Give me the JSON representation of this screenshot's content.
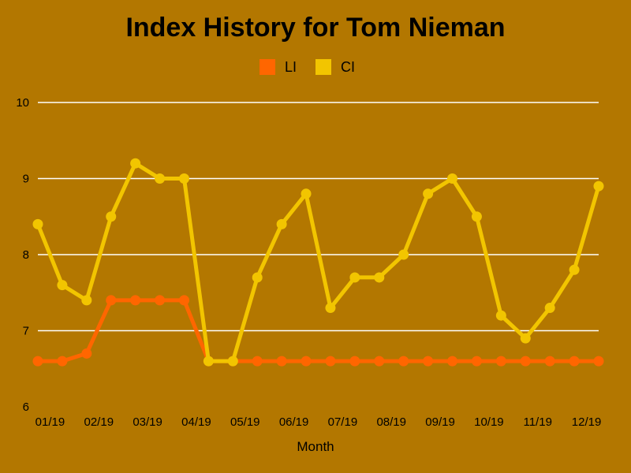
{
  "chart_data": {
    "type": "line",
    "title": "Index History for Tom Nieman",
    "xlabel": "Month",
    "ylabel": "",
    "ylim": [
      6,
      10
    ],
    "yticks": [
      "6",
      "7",
      "8",
      "9",
      "10"
    ],
    "grid": true,
    "legend_position": "top-center",
    "x": [
      "01/19",
      "",
      "",
      "02/19",
      "",
      "03/19",
      "",
      "04/19",
      "",
      "05/19",
      "",
      "06/19",
      "",
      "07/19",
      "",
      "08/19",
      "",
      "09/19",
      "",
      "10/19",
      "",
      "11/19",
      "",
      "12/19"
    ],
    "xtick_labels": [
      {
        "label": "01/19",
        "index": 0.5
      },
      {
        "label": "02/19",
        "index": 2.5
      },
      {
        "label": "03/19",
        "index": 4.5
      },
      {
        "label": "04/19",
        "index": 6.5
      },
      {
        "label": "05/19",
        "index": 8.5
      },
      {
        "label": "06/19",
        "index": 10.5
      },
      {
        "label": "07/19",
        "index": 12.5
      },
      {
        "label": "08/19",
        "index": 14.5
      },
      {
        "label": "09/19",
        "index": 16.5
      },
      {
        "label": "10/19",
        "index": 18.5
      },
      {
        "label": "11/19",
        "index": 20.5
      },
      {
        "label": "12/19",
        "index": 22.5
      }
    ],
    "series": [
      {
        "name": "LI",
        "color": "#FF6600",
        "values": [
          6.6,
          6.6,
          6.7,
          7.4,
          7.4,
          7.4,
          7.4,
          6.6,
          6.6,
          6.6,
          6.6,
          6.6,
          6.6,
          6.6,
          6.6,
          6.6,
          6.6,
          6.6,
          6.6,
          6.6,
          6.6,
          6.6,
          6.6,
          6.6
        ]
      },
      {
        "name": "CI",
        "color": "#F2C500",
        "values": [
          8.4,
          7.6,
          7.4,
          8.5,
          9.2,
          9.0,
          9.0,
          6.6,
          6.6,
          7.7,
          8.4,
          8.8,
          7.3,
          7.7,
          7.7,
          8.0,
          8.8,
          9.0,
          8.5,
          7.2,
          6.9,
          7.3,
          7.8,
          8.9
        ]
      }
    ]
  }
}
